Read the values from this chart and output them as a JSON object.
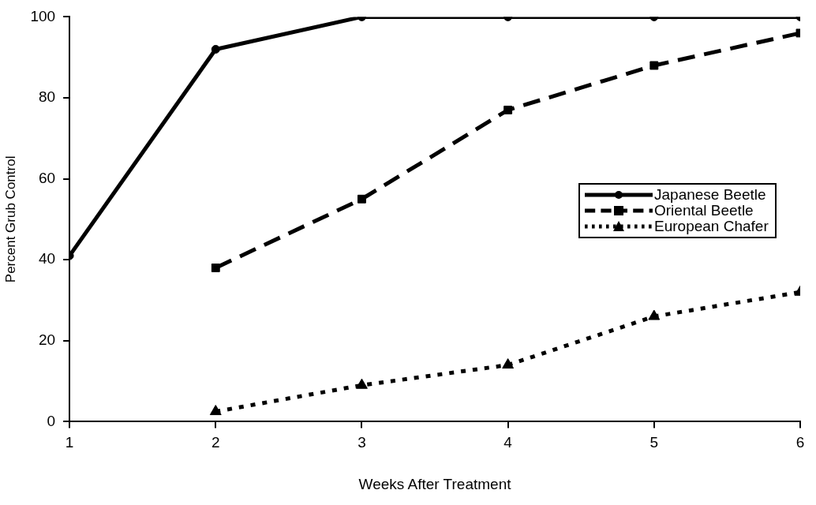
{
  "chart_data": {
    "type": "line",
    "xlabel": "Weeks After Treatment",
    "ylabel": "Percent Grub Control",
    "x": [
      1,
      2,
      3,
      4,
      5,
      6
    ],
    "xlim": [
      1,
      6
    ],
    "xticks": [
      1,
      2,
      3,
      4,
      5,
      6
    ],
    "ylim": [
      0,
      100
    ],
    "yticks": [
      0,
      20,
      40,
      60,
      80,
      100
    ],
    "grid": false,
    "legend": "right",
    "series": [
      {
        "name": "Japanese Beetle",
        "color": "#000000",
        "marker": "circle",
        "line_style": "solid",
        "values": [
          41,
          92,
          100,
          100,
          100,
          100
        ]
      },
      {
        "name": "Oriental Beetle",
        "color": "#000000",
        "marker": "square",
        "line_style": "dashed",
        "values": [
          null,
          38,
          55,
          77,
          88,
          96
        ]
      },
      {
        "name": "European Chafer",
        "color": "#000000",
        "marker": "triangle",
        "line_style": "dotted",
        "values": [
          null,
          2.5,
          9,
          14,
          26,
          32
        ]
      }
    ]
  }
}
